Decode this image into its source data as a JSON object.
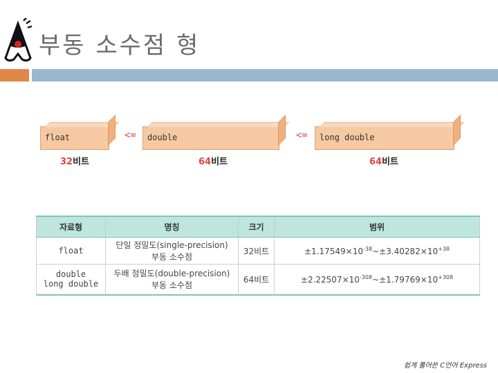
{
  "title": "부동 소수점 형",
  "boxes": [
    {
      "label": "float",
      "bits_num": "32",
      "bits_unit": "비트"
    },
    {
      "label": "double",
      "bits_num": "64",
      "bits_unit": "비트"
    },
    {
      "label": "long double",
      "bits_num": "64",
      "bits_unit": "비트"
    }
  ],
  "arrow_symbol": "<=",
  "table": {
    "headers": [
      "자료형",
      "명칭",
      "크기",
      "범위"
    ],
    "rows": [
      {
        "type": [
          "float"
        ],
        "name": [
          "단일 정밀도(single-precision)",
          "부동 소수점"
        ],
        "size": "32비트",
        "range_a": "±1.17549×10",
        "exp_a": "-38",
        "range_b": "~±3.40282×10",
        "exp_b": "+38"
      },
      {
        "type": [
          "double",
          "long double"
        ],
        "name": [
          "두배 정밀도(double-precision)",
          "부동 소수점"
        ],
        "size": "64비트",
        "range_a": "±2.22507×10",
        "exp_a": "-308",
        "range_b": "~±1.79769×10",
        "exp_b": "+308"
      }
    ]
  },
  "footer": "쉽게 풀어쓴 C언어 Express",
  "colors": {
    "accent_orange": "#e0874a",
    "accent_blue": "#9bb7cf",
    "highlight_red": "#e3443b",
    "table_header": "#bfe6dc"
  }
}
